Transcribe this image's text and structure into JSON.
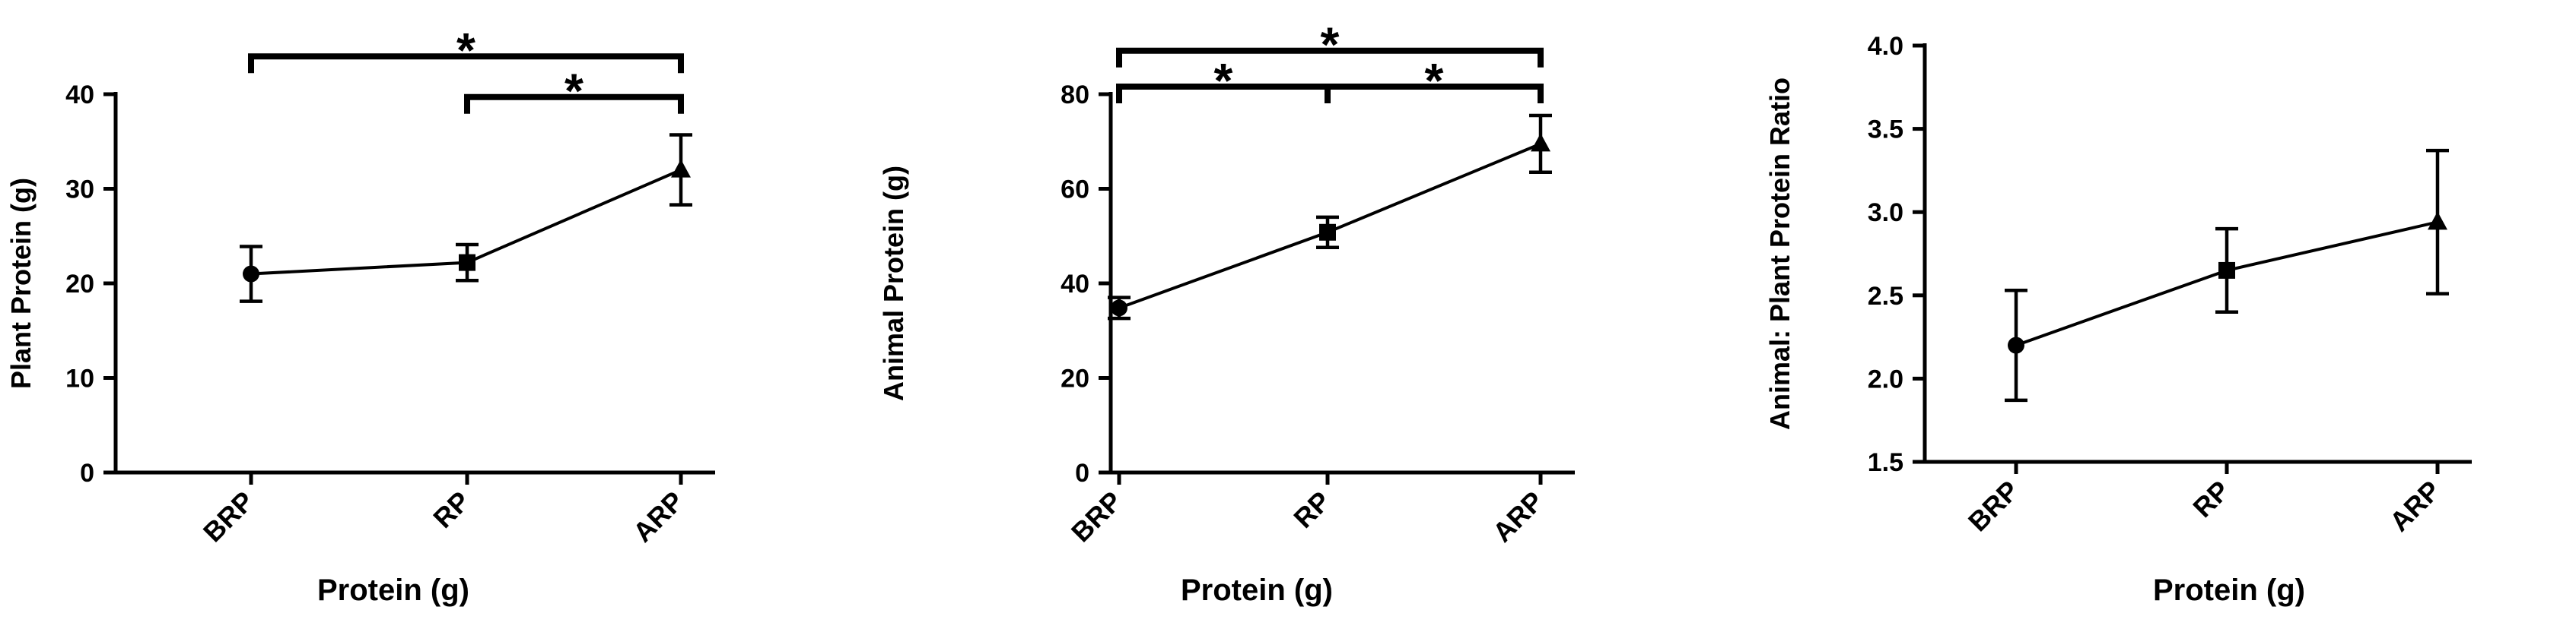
{
  "chart_data": [
    {
      "type": "line",
      "categories": [
        "BRP",
        "RP",
        "ARP"
      ],
      "values": [
        21,
        22.2,
        32
      ],
      "error": [
        2.9,
        1.9,
        3.7
      ],
      "markers": [
        "circle",
        "square",
        "triangle"
      ],
      "xlabel": "Protein (g)",
      "ylabel": "Plant Protein (g)",
      "ylim": [
        0,
        40
      ],
      "yticks": [
        "0",
        "10",
        "20",
        "30",
        "40"
      ],
      "significance": [
        {
          "from": 0,
          "to": 2,
          "label": "*",
          "level": 44
        },
        {
          "from": 1,
          "to": 2,
          "label": "*",
          "level": 39.7
        }
      ]
    },
    {
      "type": "line",
      "categories": [
        "BRP",
        "RP",
        "ARP"
      ],
      "values": [
        34.8,
        50.8,
        69.5
      ],
      "error": [
        2.2,
        3.2,
        6
      ],
      "markers": [
        "circle",
        "square",
        "triangle"
      ],
      "xlabel": "Protein (g)",
      "ylabel": "Animal Protein (g)",
      "ylim": [
        0,
        80
      ],
      "yticks": [
        "0",
        "20",
        "40",
        "60",
        "80"
      ],
      "significance": [
        {
          "from": 0,
          "to": 2,
          "label": "*",
          "level": 89.2
        },
        {
          "from": 0,
          "to": 1,
          "label": "*",
          "level": 81.6
        },
        {
          "from": 1,
          "to": 2,
          "label": "*",
          "level": 81.6
        }
      ]
    },
    {
      "type": "line",
      "categories": [
        "BRP",
        "RP",
        "ARP"
      ],
      "values": [
        2.2,
        2.65,
        2.94
      ],
      "error": [
        0.33,
        0.25,
        0.43
      ],
      "markers": [
        "circle",
        "square",
        "triangle"
      ],
      "xlabel": "Protein (g)",
      "ylabel": "Animal: Plant Protein Ratio",
      "ylim": [
        1.5,
        4.0
      ],
      "yticks": [
        "1.5",
        "2.0",
        "2.5",
        "3.0",
        "3.5",
        "4.0"
      ],
      "significance": []
    }
  ]
}
